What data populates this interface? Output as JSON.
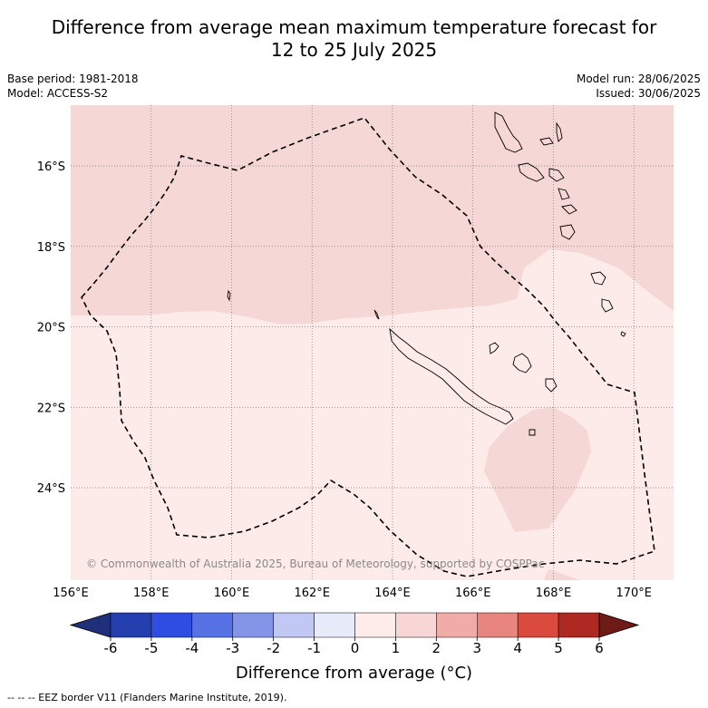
{
  "title_line1": "Difference from average mean maximum temperature forecast for",
  "title_line2": "12 to 25 July 2025",
  "base_period": "Base period: 1981-2018",
  "model": "Model: ACCESS-S2",
  "model_run": "Model run: 28/06/2025",
  "issued": "Issued: 30/06/2025",
  "lat_labels": [
    "16°S",
    "18°S",
    "20°S",
    "22°S",
    "24°S"
  ],
  "lon_labels": [
    "156°E",
    "158°E",
    "160°E",
    "162°E",
    "164°E",
    "166°E",
    "168°E",
    "170°E"
  ],
  "copyright": "© Commonwealth of Australia 2025, Bureau of Meteorology, supported by COSPPac",
  "colorbar": {
    "ticks": [
      "-6",
      "-5",
      "-4",
      "-3",
      "-2",
      "-1",
      "0",
      "1",
      "2",
      "3",
      "4",
      "5",
      "6"
    ],
    "colors": [
      "#233fae",
      "#2f4de0",
      "#5672e4",
      "#8495e8",
      "#c1c8f3",
      "#e8ebfa",
      "#fdece9",
      "#f7d6d5",
      "#f1aca8",
      "#e8857e",
      "#db4a3f",
      "#ad2922"
    ],
    "low_extend_color": "#1f2f7a",
    "high_extend_color": "#6e1a17",
    "label": "Difference from average (°C)"
  },
  "legend_line": "--  --  -- EEZ border V11 (Flanders Marine Institute, 2019).",
  "fill_colors": {
    "zero_to_one": "#fcebe9",
    "one_to_two": "#f5d7d6"
  }
}
